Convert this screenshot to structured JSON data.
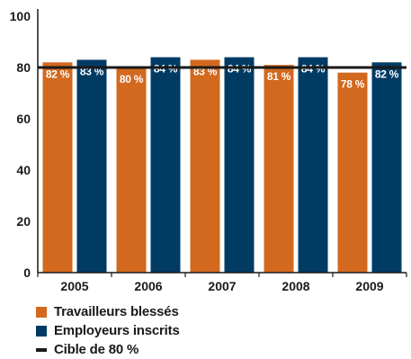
{
  "chart_data": {
    "type": "bar",
    "categories": [
      "2005",
      "2006",
      "2007",
      "2008",
      "2009"
    ],
    "series": [
      {
        "name": "Travailleurs blessés",
        "values": [
          82,
          80,
          83,
          81,
          78
        ],
        "labels": [
          "82 %",
          "80 %",
          "83 %",
          "81 %",
          "78 %"
        ],
        "color": "#d2691e"
      },
      {
        "name": "Employeurs inscrits",
        "values": [
          83,
          84,
          84,
          84,
          82
        ],
        "labels": [
          "83 %",
          "84 %",
          "84 %",
          "84 %",
          "82 %"
        ],
        "color": "#003b64"
      }
    ],
    "target": {
      "name": "Cible de 80 %",
      "value": 80,
      "color": "#1a1a1a"
    },
    "ylim": [
      0,
      100
    ],
    "yticks": [
      "0",
      "20",
      "40",
      "60",
      "80",
      "100"
    ],
    "grid": false,
    "legend_position": "bottom-left"
  }
}
